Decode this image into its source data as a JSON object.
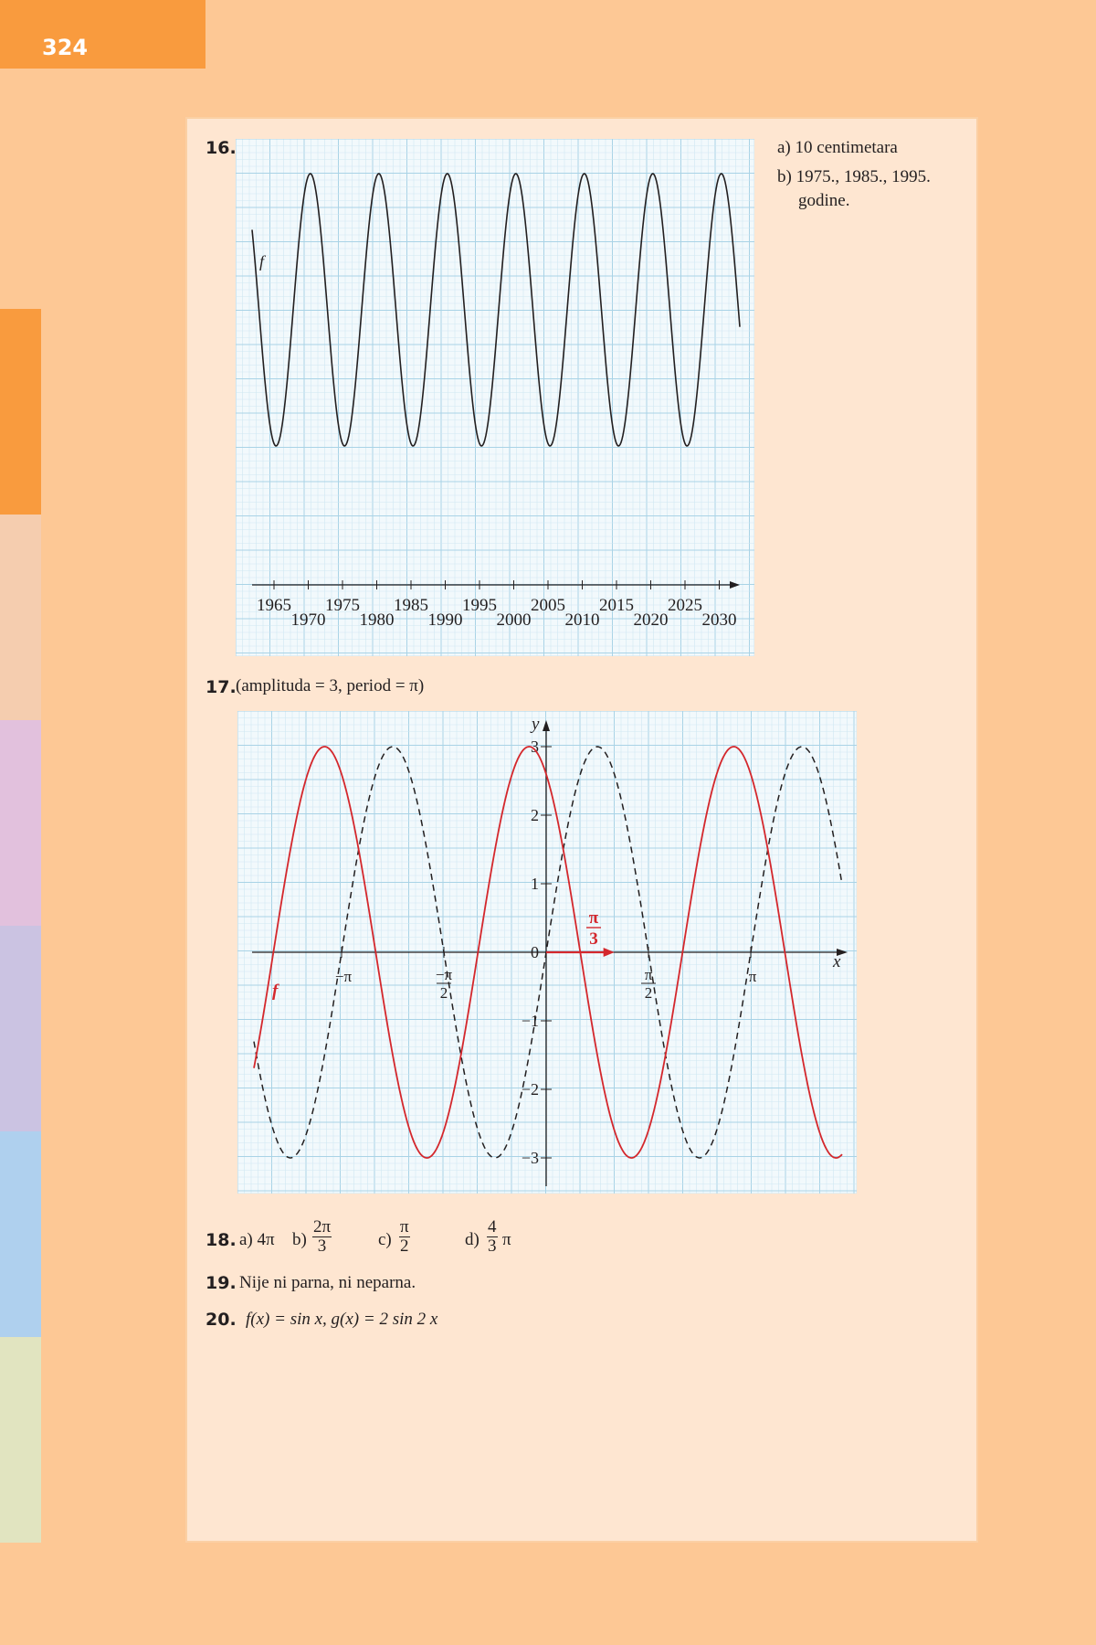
{
  "page": {
    "number": "324"
  },
  "side_tabs": [
    {
      "color": "#f99b3e"
    },
    {
      "color": "#f5cdaf"
    },
    {
      "color": "#e2c1dd"
    },
    {
      "color": "#cbc3e2"
    },
    {
      "color": "#afd0ee"
    },
    {
      "color": "#e1e4c0"
    }
  ],
  "task16": {
    "number": "16.",
    "answer_a": "a) 10 centimetara",
    "answer_b_line1": "b) 1975., 1985., 1995.",
    "answer_b_line2": "godine."
  },
  "task17": {
    "number": "17.",
    "text": "(amplituda = 3, period = π)"
  },
  "task18": {
    "number": "18.",
    "a": "a) 4π",
    "b_label": "b)",
    "b_num": "2π",
    "b_den": "3",
    "c_label": "c)",
    "c_num": "π",
    "c_den": "2",
    "d_label": "d)",
    "d_num": "4",
    "d_den": "3",
    "d_tail": "π"
  },
  "task19": {
    "number": "19.",
    "text": "Nije ni parna, ni neparna."
  },
  "task20": {
    "number": "20.",
    "text": "f(x) = sin x, g(x) = 2 sin 2 x"
  },
  "chart_data": [
    {
      "type": "line",
      "title": "",
      "series": [
        {
          "name": "f",
          "function": "wave: period 10 years, peak near 1966.5+5k (5 cm amplitude, centred on middle line)",
          "peaks_x": [
            1967,
            1977,
            1987,
            1997,
            2007,
            2017,
            2027
          ],
          "troughs_x": [
            1965,
            1975,
            1985,
            1995,
            2005,
            2015,
            2025
          ]
        }
      ],
      "x_tick_labels_upper": [
        "1965",
        "1975",
        "1985",
        "1995",
        "2005",
        "2015",
        "2025"
      ],
      "x_tick_labels_lower": [
        "1970",
        "1980",
        "1990",
        "2000",
        "2010",
        "2020",
        "2030"
      ],
      "xlim": [
        1965,
        2031
      ],
      "period": 10,
      "grid": true
    },
    {
      "type": "line",
      "title": "",
      "xlabel": "x",
      "ylabel": "y",
      "series": [
        {
          "name": "f",
          "color": "#d4272c",
          "style": "solid",
          "function": "3 sin(2x + π/2 + π/3)... shifted left by π/3"
        },
        {
          "name": "",
          "color": "#231f20",
          "style": "dashed",
          "function": "3 sin(2x)"
        }
      ],
      "shift_label": {
        "num": "π",
        "den": "3"
      },
      "y_ticks": [
        "3",
        "2",
        "1",
        "0",
        "−1",
        "−2",
        "−3"
      ],
      "x_ticks": [
        "−π",
        "−π/2",
        "π/2",
        "π"
      ],
      "ylim": [
        -3,
        3
      ],
      "grid": true
    }
  ]
}
